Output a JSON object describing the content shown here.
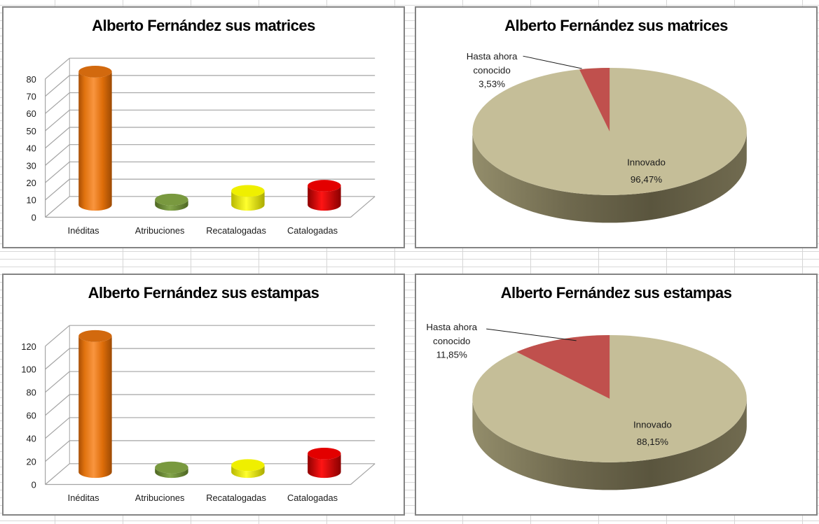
{
  "chart_data": [
    {
      "type": "bar",
      "variant": "3d-cylinder",
      "title": "Alberto Fernández sus matrices",
      "categories": [
        "Inéditas",
        "Atribuciones",
        "Recatalogadas",
        "Catalogadas"
      ],
      "values": [
        77,
        3,
        8,
        11
      ],
      "bar_colors": [
        "#E36C09",
        "#77933C",
        "#FFFF00",
        "#FF0000"
      ],
      "xlabel": "",
      "ylabel": "",
      "ylim": [
        0,
        80
      ],
      "ytick_step": 10,
      "grid": true,
      "legend": "none"
    },
    {
      "type": "pie",
      "variant": "3d",
      "title": "Alberto Fernández sus matrices",
      "slices": [
        {
          "name": "Innovado",
          "pct": 96.47,
          "pct_label": "96,47%",
          "color": "#C5BE98",
          "label_position": "inside"
        },
        {
          "name": "Hasta ahora conocido",
          "pct": 3.53,
          "pct_label": "3,53%",
          "color": "#C0504D",
          "label_position": "outside",
          "label_lines": [
            "Hasta ahora",
            "conocido"
          ]
        }
      ],
      "legend": "none"
    },
    {
      "type": "bar",
      "variant": "3d-cylinder",
      "title": "Alberto Fernández sus estampas",
      "categories": [
        "Inéditas",
        "Atribuciones",
        "Recatalogadas",
        "Catalogadas"
      ],
      "values": [
        118,
        4,
        6,
        16
      ],
      "bar_colors": [
        "#E36C09",
        "#77933C",
        "#FFFF00",
        "#FF0000"
      ],
      "xlabel": "",
      "ylabel": "",
      "ylim": [
        0,
        120
      ],
      "ytick_step": 20,
      "grid": true,
      "legend": "none"
    },
    {
      "type": "pie",
      "variant": "3d",
      "title": "Alberto Fernández sus estampas",
      "slices": [
        {
          "name": "Innovado",
          "pct": 88.15,
          "pct_label": "88,15%",
          "color": "#C5BE98",
          "label_position": "inside"
        },
        {
          "name": "Hasta ahora conocido",
          "pct": 11.85,
          "pct_label": "11,85%",
          "color": "#C0504D",
          "label_position": "outside",
          "label_lines": [
            "Hasta ahora",
            "conocido"
          ]
        }
      ],
      "legend": "none"
    }
  ],
  "style": {
    "pie_top_color": "#C5BE98",
    "pie_side_colors": [
      "#938D6B",
      "#6F694E",
      "#5A553E",
      "#716B50"
    ],
    "accent_red": "#C0504D",
    "axis_line_color": "#A3A3A3",
    "tick_text_color": "#1A1A1A",
    "title_color": "#000000"
  }
}
